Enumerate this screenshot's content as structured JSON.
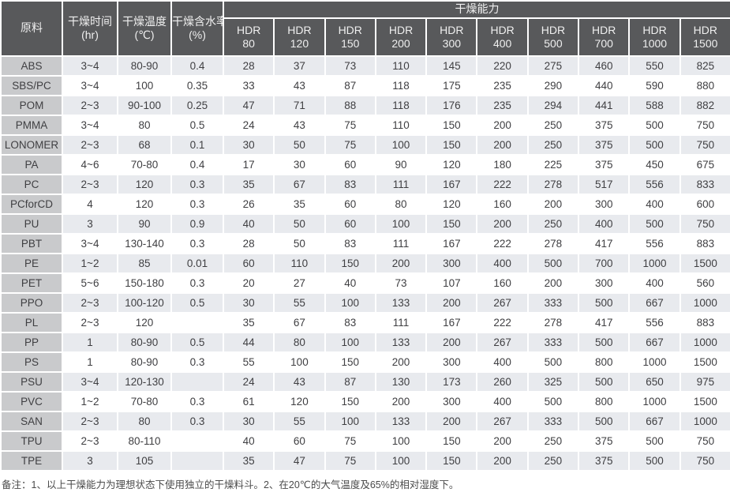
{
  "colors": {
    "header_bg": "#58595b",
    "header_text": "#efefef",
    "material_col_bg": "#c9cacc",
    "stripe_bg": "#e8eaee",
    "cell_text": "#3f3f42"
  },
  "table": {
    "columns": {
      "material": "原料",
      "time_label": "干燥时间",
      "time_unit": "(hr)",
      "temp_label": "干燥温度",
      "temp_unit": "(℃)",
      "moisture_label": "干燥含水率",
      "moisture_unit": "(%)",
      "capacity_group": "干燥能力",
      "hdr_prefix": "HDR",
      "hdr_sizes": [
        "80",
        "120",
        "150",
        "200",
        "300",
        "400",
        "500",
        "700",
        "1000",
        "1500"
      ]
    },
    "rows": [
      {
        "material": "ABS",
        "time": "3~4",
        "temp": "80-90",
        "moisture": "0.4",
        "capacity": [
          "28",
          "37",
          "73",
          "110",
          "145",
          "220",
          "275",
          "460",
          "550",
          "825"
        ]
      },
      {
        "material": "SBS/PC",
        "time": "3~4",
        "temp": "100",
        "moisture": "0.35",
        "capacity": [
          "33",
          "43",
          "87",
          "118",
          "175",
          "235",
          "290",
          "440",
          "590",
          "880"
        ]
      },
      {
        "material": "POM",
        "time": "2~3",
        "temp": "90-100",
        "moisture": "0.25",
        "capacity": [
          "47",
          "71",
          "88",
          "118",
          "176",
          "235",
          "294",
          "441",
          "588",
          "882"
        ]
      },
      {
        "material": "PMMA",
        "time": "3~4",
        "temp": "80",
        "moisture": "0.5",
        "capacity": [
          "24",
          "43",
          "75",
          "110",
          "150",
          "200",
          "250",
          "375",
          "500",
          "750"
        ]
      },
      {
        "material": "LONOMER",
        "time": "2~3",
        "temp": "68",
        "moisture": "0.1",
        "capacity": [
          "30",
          "50",
          "75",
          "100",
          "150",
          "200",
          "250",
          "375",
          "500",
          "750"
        ]
      },
      {
        "material": "PA",
        "time": "4~6",
        "temp": "70-80",
        "moisture": "0.4",
        "capacity": [
          "17",
          "30",
          "60",
          "90",
          "120",
          "180",
          "225",
          "375",
          "450",
          "675"
        ]
      },
      {
        "material": "PC",
        "time": "2~3",
        "temp": "120",
        "moisture": "0.3",
        "capacity": [
          "35",
          "67",
          "83",
          "111",
          "167",
          "222",
          "278",
          "517",
          "556",
          "833"
        ]
      },
      {
        "material": "PCforCD",
        "time": "4",
        "temp": "120",
        "moisture": "0.3",
        "capacity": [
          "26",
          "35",
          "60",
          "80",
          "120",
          "160",
          "200",
          "300",
          "400",
          "600"
        ]
      },
      {
        "material": "PU",
        "time": "3",
        "temp": "90",
        "moisture": "0.9",
        "capacity": [
          "40",
          "50",
          "60",
          "100",
          "150",
          "200",
          "250",
          "400",
          "500",
          "750"
        ]
      },
      {
        "material": "PBT",
        "time": "3~4",
        "temp": "130-140",
        "moisture": "0.3",
        "capacity": [
          "28",
          "50",
          "83",
          "111",
          "167",
          "222",
          "278",
          "417",
          "556",
          "883"
        ]
      },
      {
        "material": "PE",
        "time": "1~2",
        "temp": "85",
        "moisture": "0.01",
        "capacity": [
          "60",
          "110",
          "150",
          "200",
          "300",
          "400",
          "500",
          "700",
          "1000",
          "1500"
        ]
      },
      {
        "material": "PET",
        "time": "5~6",
        "temp": "150-180",
        "moisture": "0.3",
        "capacity": [
          "20",
          "27",
          "40",
          "73",
          "107",
          "160",
          "200",
          "300",
          "400",
          "560"
        ]
      },
      {
        "material": "PPO",
        "time": "2~3",
        "temp": "100-120",
        "moisture": "0.5",
        "capacity": [
          "30",
          "55",
          "100",
          "133",
          "200",
          "267",
          "333",
          "500",
          "667",
          "1000"
        ]
      },
      {
        "material": "PL",
        "time": "2~3",
        "temp": "120",
        "moisture": "",
        "capacity": [
          "35",
          "67",
          "83",
          "111",
          "167",
          "222",
          "278",
          "417",
          "556",
          "883"
        ]
      },
      {
        "material": "PP",
        "time": "1",
        "temp": "80-90",
        "moisture": "0.5",
        "capacity": [
          "44",
          "80",
          "100",
          "133",
          "200",
          "267",
          "333",
          "500",
          "667",
          "1000"
        ]
      },
      {
        "material": "PS",
        "time": "1",
        "temp": "80-90",
        "moisture": "0.3",
        "capacity": [
          "55",
          "100",
          "150",
          "200",
          "300",
          "400",
          "500",
          "800",
          "1000",
          "1500"
        ]
      },
      {
        "material": "PSU",
        "time": "3~4",
        "temp": "120-130",
        "moisture": "",
        "capacity": [
          "24",
          "43",
          "87",
          "130",
          "173",
          "260",
          "325",
          "500",
          "650",
          "975"
        ]
      },
      {
        "material": "PVC",
        "time": "1~2",
        "temp": "70-80",
        "moisture": "0.3",
        "capacity": [
          "61",
          "120",
          "150",
          "200",
          "300",
          "400",
          "500",
          "800",
          "1000",
          "1500"
        ]
      },
      {
        "material": "SAN",
        "time": "2~3",
        "temp": "80",
        "moisture": "0.3",
        "capacity": [
          "30",
          "55",
          "100",
          "133",
          "200",
          "267",
          "333",
          "500",
          "667",
          "1000"
        ]
      },
      {
        "material": "TPU",
        "time": "2~3",
        "temp": "80-110",
        "moisture": "",
        "capacity": [
          "40",
          "60",
          "75",
          "100",
          "150",
          "200",
          "250",
          "375",
          "500",
          "750"
        ]
      },
      {
        "material": "TPE",
        "time": "3",
        "temp": "105",
        "moisture": "",
        "capacity": [
          "35",
          "47",
          "75",
          "100",
          "150",
          "200",
          "250",
          "375",
          "500",
          "750"
        ]
      }
    ],
    "note": "备注：1、以上干燥能力为理想状态下使用独立的干燥料斗。2、在20℃的大气温度及65%的相对湿度下。"
  }
}
